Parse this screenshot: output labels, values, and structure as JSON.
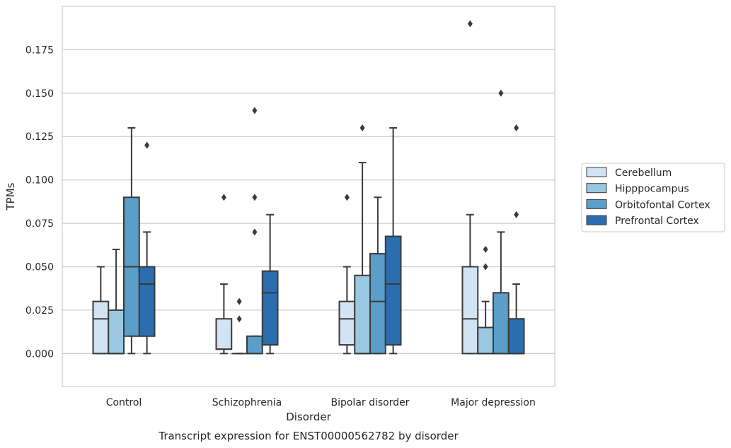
{
  "chart_data": {
    "type": "boxplot",
    "title": "Transcript expression for ENST00000562782 by disorder",
    "xlabel": "Disorder",
    "ylabel": "TPMs",
    "ylim": [
      -0.019,
      0.2
    ],
    "yticks": [
      "0.000",
      "0.025",
      "0.050",
      "0.075",
      "0.100",
      "0.125",
      "0.150",
      "0.175"
    ],
    "grid": "horizontal",
    "legend_position": "right",
    "categories": [
      "Control",
      "Schizophrenia",
      "Bipolar disorder",
      "Major depression"
    ],
    "series": [
      {
        "name": "Cerebellum",
        "color": "#d2e3f3",
        "boxes": [
          {
            "whislo": 0.0,
            "q1": 0.0,
            "med": 0.02,
            "q3": 0.03,
            "whishi": 0.05,
            "fliers": []
          },
          {
            "whislo": 0.0,
            "q1": 0.0025,
            "med": 0.0025,
            "q3": 0.02,
            "whishi": 0.04,
            "fliers": [
              0.09
            ]
          },
          {
            "whislo": 0.0,
            "q1": 0.005,
            "med": 0.02,
            "q3": 0.03,
            "whishi": 0.05,
            "fliers": [
              0.09
            ]
          },
          {
            "whislo": 0.0,
            "q1": 0.0,
            "med": 0.02,
            "q3": 0.05,
            "whishi": 0.08,
            "fliers": [
              0.19
            ]
          }
        ]
      },
      {
        "name": "Hipppocampus",
        "color": "#9ac8e0",
        "boxes": [
          {
            "whislo": 0.0,
            "q1": 0.0,
            "med": 0.0,
            "q3": 0.025,
            "whishi": 0.06,
            "fliers": []
          },
          {
            "whislo": 0.0,
            "q1": 0.0,
            "med": 0.0,
            "q3": 0.0,
            "whishi": 0.0,
            "fliers": [
              0.02,
              0.03
            ]
          },
          {
            "whislo": 0.0,
            "q1": 0.0,
            "med": 0.0,
            "q3": 0.045,
            "whishi": 0.11,
            "fliers": [
              0.13
            ]
          },
          {
            "whislo": 0.0,
            "q1": 0.0,
            "med": 0.0,
            "q3": 0.015,
            "whishi": 0.03,
            "fliers": [
              0.05,
              0.06
            ]
          }
        ]
      },
      {
        "name": "Orbitofontal Cortex",
        "color": "#5a9ec9",
        "boxes": [
          {
            "whislo": 0.0,
            "q1": 0.01,
            "med": 0.05,
            "q3": 0.09,
            "whishi": 0.13,
            "fliers": []
          },
          {
            "whislo": 0.0,
            "q1": 0.0,
            "med": 0.0,
            "q3": 0.01,
            "whishi": 0.01,
            "fliers": [
              0.07,
              0.09,
              0.14
            ]
          },
          {
            "whislo": 0.0,
            "q1": 0.0,
            "med": 0.03,
            "q3": 0.0575,
            "whishi": 0.09,
            "fliers": []
          },
          {
            "whislo": 0.0,
            "q1": 0.0,
            "med": 0.0,
            "q3": 0.035,
            "whishi": 0.07,
            "fliers": [
              0.15
            ]
          }
        ]
      },
      {
        "name": "Prefrontal Cortex",
        "color": "#2a6eb0",
        "boxes": [
          {
            "whislo": 0.0,
            "q1": 0.01,
            "med": 0.04,
            "q3": 0.05,
            "whishi": 0.07,
            "fliers": [
              0.12
            ]
          },
          {
            "whislo": 0.0,
            "q1": 0.005,
            "med": 0.035,
            "q3": 0.0475,
            "whishi": 0.08,
            "fliers": []
          },
          {
            "whislo": 0.0,
            "q1": 0.005,
            "med": 0.04,
            "q3": 0.0675,
            "whishi": 0.13,
            "fliers": []
          },
          {
            "whislo": 0.0,
            "q1": 0.0,
            "med": 0.0,
            "q3": 0.02,
            "whishi": 0.04,
            "fliers": [
              0.08,
              0.13
            ]
          }
        ]
      }
    ]
  }
}
